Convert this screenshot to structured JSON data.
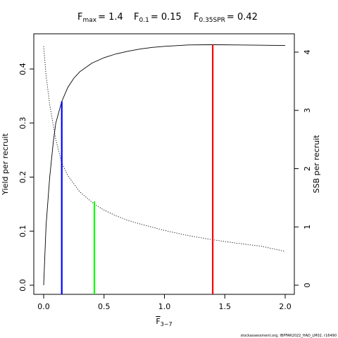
{
  "chart_data": {
    "type": "line",
    "title": {
      "fmax_label": "F",
      "fmax_sub": "max",
      "fmax_value": "= 1.4",
      "f01_label": "F",
      "f01_sub": "0.1",
      "f01_value": "= 0.15",
      "fspr_label": "F",
      "fspr_sub": "0.35SPR",
      "fspr_value": "= 0.42"
    },
    "xlabel": {
      "main": "F",
      "sub": "3−7"
    },
    "ylabel_left": "Yield per recruit",
    "ylabel_right": "SSB per recruit",
    "xlim": [
      0,
      2.0
    ],
    "ylim_left": [
      0,
      0.45
    ],
    "ylim_right": [
      0,
      4.1
    ],
    "x_ticks": [
      {
        "value": 0.0,
        "label": "0.0"
      },
      {
        "value": 0.5,
        "label": "0.5"
      },
      {
        "value": 1.0,
        "label": "1.0"
      },
      {
        "value": 1.5,
        "label": "1.5"
      },
      {
        "value": 2.0,
        "label": "2.0"
      }
    ],
    "y_left_ticks": [
      {
        "value": 0.0,
        "label": "0.0"
      },
      {
        "value": 0.1,
        "label": "0.1"
      },
      {
        "value": 0.2,
        "label": "0.2"
      },
      {
        "value": 0.3,
        "label": "0.3"
      },
      {
        "value": 0.4,
        "label": "0.4"
      }
    ],
    "y_right_ticks": [
      {
        "value": 0,
        "label": "0"
      },
      {
        "value": 1,
        "label": "1"
      },
      {
        "value": 2,
        "label": "2"
      },
      {
        "value": 3,
        "label": "3"
      },
      {
        "value": 4,
        "label": "4"
      }
    ],
    "series": [
      {
        "axis": "left",
        "style": "solid",
        "x": [
          0,
          0.02,
          0.05,
          0.08,
          0.1,
          0.15,
          0.2,
          0.25,
          0.3,
          0.4,
          0.5,
          0.6,
          0.7,
          0.8,
          0.9,
          1.0,
          1.2,
          1.4,
          1.6,
          1.8,
          2.0
        ],
        "y": [
          0.0,
          0.11,
          0.2,
          0.265,
          0.3,
          0.34,
          0.366,
          0.383,
          0.395,
          0.411,
          0.421,
          0.428,
          0.433,
          0.437,
          0.44,
          0.442,
          0.4445,
          0.445,
          0.4445,
          0.444,
          0.4435
        ]
      },
      {
        "axis": "right",
        "style": "dotted",
        "x": [
          0,
          0.02,
          0.05,
          0.1,
          0.15,
          0.2,
          0.3,
          0.42,
          0.5,
          0.6,
          0.7,
          0.8,
          1.0,
          1.2,
          1.4,
          1.6,
          1.8,
          2.0
        ],
        "y": [
          4.1,
          3.6,
          3.1,
          2.5,
          2.1,
          1.88,
          1.6,
          1.39,
          1.29,
          1.19,
          1.11,
          1.05,
          0.94,
          0.85,
          0.78,
          0.72,
          0.67,
          0.58
        ]
      }
    ],
    "reference_lines": [
      {
        "name": "F0.1",
        "x": 0.15,
        "y_top": 0.34,
        "color": "#0000ff"
      },
      {
        "name": "F0.35SPR",
        "x": 0.42,
        "y_top": 0.155,
        "color": "#00ff00"
      },
      {
        "name": "Fmax",
        "x": 1.4,
        "y_top": 0.445,
        "color": "#ff0000"
      }
    ]
  },
  "footnote": "stockassessment.org, IBPFAR2022_HAD_LM02, r16490"
}
